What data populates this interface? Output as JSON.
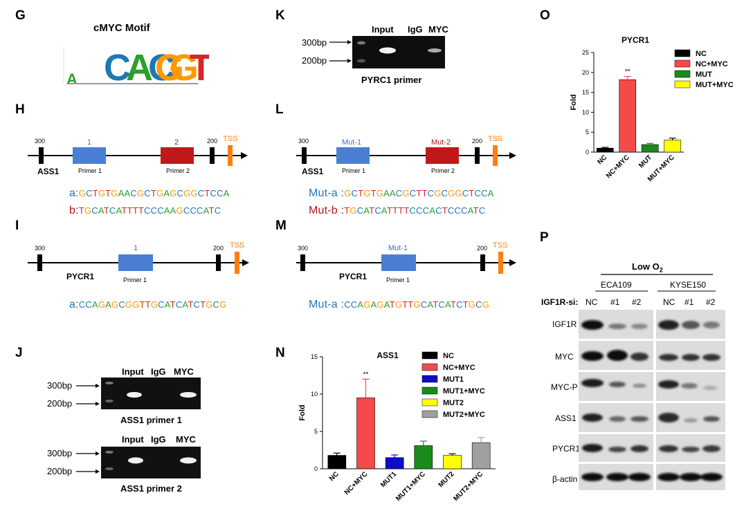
{
  "labels": {
    "G": "G",
    "H": "H",
    "I": "I",
    "J": "J",
    "K": "K",
    "L": "L",
    "M": "M",
    "N": "N",
    "O": "O",
    "P": "P"
  },
  "motif": {
    "title": "cMYC Motif",
    "letters": [
      "A",
      "C",
      "A",
      "C",
      "G",
      "T",
      "G"
    ]
  },
  "panelH": {
    "m300": "300",
    "m200": "200",
    "tss": "TSS",
    "gene": "ASS1",
    "box1": "1",
    "box2": "2",
    "primer1": "Primer 1",
    "primer2": "Primer 2",
    "seqA_label": "a:",
    "seqA": "GCTGTGAACGCTGAGCGGCTCCA",
    "seqB_label": "b:",
    "seqB": "TGCATCATTTTCCCAAGCCCATC"
  },
  "panelI": {
    "m300": "300",
    "m200": "200",
    "tss": "TSS",
    "gene": "PYCR1",
    "box1": "1",
    "primer1": "Primer 1",
    "seqA_label": "a:",
    "seqA": "CCAGAGCGGTTGCATCATCTGCG"
  },
  "panelL": {
    "m300": "300",
    "m200": "200",
    "tss": "TSS",
    "gene": "ASS1",
    "box1": "Mut-1",
    "box2": "Mut-2",
    "primer1": "Primer 1",
    "primer2": "Primer 2",
    "seqA_label": "Mut-a :",
    "seqA": "GCTGTGAACGCTTCGCGGCTCCA",
    "seqB_label": "Mut-b :",
    "seqB": "TGCATCATTTTCCCACTCCCATC"
  },
  "panelM": {
    "m300": "300",
    "m200": "200",
    "tss": "TSS",
    "gene": "PYCR1",
    "box1": "Mut-1",
    "primer1": "Primer 1",
    "seqA_label": "Mut-a :",
    "seqA": "CCAGAGATGTTGCATCATCTGCG"
  },
  "panelJ": {
    "lanes": [
      "Input",
      "IgG",
      "MYC"
    ],
    "bp300": "300bp",
    "bp200": "200bp",
    "caption1": "ASS1 primer 1",
    "caption2": "ASS1 primer 2"
  },
  "panelK": {
    "lanes": [
      "Input",
      "IgG",
      "MYC"
    ],
    "bp300": "300bp",
    "bp200": "200bp",
    "caption": "PYRC1 primer"
  },
  "panelP": {
    "low_o2": "Low O",
    "low_o2_sub": "2",
    "cells": [
      "ECA109",
      "KYSE150"
    ],
    "si_label": "IGF1R-si:",
    "lanes": [
      "NC",
      "#1",
      "#2",
      "NC",
      "#1",
      "#2"
    ],
    "rows": [
      "IGF1R",
      "MYC",
      "MYC-P",
      "ASS1",
      "PYCR1",
      "β-actin"
    ]
  },
  "chart_data": [
    {
      "type": "bar",
      "title": "ASS1",
      "ylabel": "Fold",
      "categories": [
        "NC",
        "NC+MYC",
        "MUT1",
        "MUT1+MYC",
        "MUT2",
        "MUT2+MYC"
      ],
      "values": [
        1.8,
        9.5,
        1.5,
        3.1,
        1.8,
        3.5
      ],
      "errors": [
        0.3,
        2.5,
        0.35,
        0.6,
        0.2,
        0.7
      ],
      "colors": [
        "#000000",
        "#f44a4a",
        "#0d0dc8",
        "#1a8a1a",
        "#ffff00",
        "#a0a0a0"
      ],
      "legend": [
        "NC",
        "NC+MYC",
        "MUT1",
        "MUT1+MYC",
        "MUT2",
        "MUT2+MYC"
      ],
      "yticks": [
        0,
        5,
        10,
        15
      ],
      "ylim": [
        0,
        15
      ],
      "annotations": [
        {
          "category": "NC+MYC",
          "text": "**"
        }
      ],
      "legend_position": "top-right"
    },
    {
      "type": "bar",
      "title": "PYCR1",
      "ylabel": "Fold",
      "categories": [
        "NC",
        "NC+MYC",
        "MUT",
        "MUT+MYC"
      ],
      "values": [
        1.0,
        18.2,
        1.9,
        3.0
      ],
      "errors": [
        0.2,
        0.8,
        0.3,
        0.5
      ],
      "colors": [
        "#000000",
        "#f44a4a",
        "#1a8a1a",
        "#ffff00"
      ],
      "legend": [
        "NC",
        "NC+MYC",
        "MUT",
        "MUT+MYC"
      ],
      "yticks": [
        0,
        5,
        10,
        15,
        20,
        25
      ],
      "ylim": [
        0,
        25
      ],
      "annotations": [
        {
          "category": "NC+MYC",
          "text": "**"
        }
      ],
      "legend_position": "top-right"
    }
  ]
}
